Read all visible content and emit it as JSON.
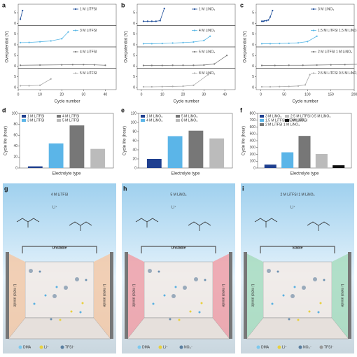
{
  "chart_data": [
    {
      "type": "stacked-line",
      "label": "a",
      "x_label": "Cycle number",
      "y_label": "Overpotential (V)",
      "xlim": [
        0,
        45
      ],
      "xticks": [
        0,
        10,
        20,
        30,
        40
      ],
      "panels": [
        {
          "name": "1 M LiTFSI",
          "color": "#1f4e9a",
          "ylim": [
            -1,
            9
          ],
          "yticks": [
            0,
            5
          ],
          "x": [
            1,
            2
          ],
          "values": [
            2,
            6
          ]
        },
        {
          "name": "3 M LiTFSI",
          "color": "#5bb8e6",
          "ylim": [
            -1,
            9
          ],
          "yticks": [
            0,
            5
          ],
          "x": [
            1,
            5,
            10,
            15,
            20,
            23
          ],
          "values": [
            1,
            1.1,
            1.4,
            1.8,
            2.8,
            6
          ]
        },
        {
          "name": "4 M LiTFSI",
          "color": "#777777",
          "ylim": [
            -1,
            9
          ],
          "yticks": [
            0,
            5
          ],
          "x": [
            1,
            10,
            20,
            25,
            30,
            35,
            40
          ],
          "values": [
            0.4,
            0.5,
            0.6,
            0.7,
            0.7,
            0.6,
            0.4
          ]
        },
        {
          "name": "5 M LiTFSI",
          "color": "#aaaaaa",
          "ylim": [
            -1,
            9
          ],
          "yticks": [
            0,
            5
          ],
          "x": [
            1,
            5,
            10,
            15
          ],
          "values": [
            0.8,
            0.8,
            1,
            4
          ]
        }
      ]
    },
    {
      "type": "stacked-line",
      "label": "b",
      "x_label": "Cycle number",
      "y_label": "Overpotential (V)",
      "xlim": [
        -2,
        45
      ],
      "xticks": [
        0,
        10,
        20,
        30,
        40
      ],
      "panels": [
        {
          "name": "1 M LiNO₃",
          "color": "#1f4e9a",
          "ylim": [
            -1,
            9
          ],
          "yticks": [
            0,
            5
          ],
          "x": [
            1,
            3,
            5,
            7,
            9,
            11
          ],
          "values": [
            1,
            1,
            1,
            1,
            1.3,
            7
          ]
        },
        {
          "name": "4 M LiNO₃",
          "color": "#5bb8e6",
          "ylim": [
            -1,
            9
          ],
          "yticks": [
            0,
            5
          ],
          "x": [
            1,
            5,
            10,
            15,
            20,
            25,
            30,
            33
          ],
          "values": [
            0.5,
            0.5,
            0.6,
            0.8,
            1,
            1.3,
            2,
            4
          ]
        },
        {
          "name": "5 M LiNO₃",
          "color": "#777777",
          "ylim": [
            -1,
            9
          ],
          "yticks": [
            0,
            5
          ],
          "x": [
            1,
            5,
            10,
            15,
            20,
            25,
            30,
            35,
            41
          ],
          "values": [
            0.3,
            0.3,
            0.3,
            0.4,
            0.4,
            0.4,
            0.5,
            1,
            5
          ]
        },
        {
          "name": "8 M LiNO₃",
          "color": "#aaaaaa",
          "ylim": [
            -1,
            9
          ],
          "yticks": [
            0,
            5
          ],
          "x": [
            1,
            5,
            10,
            15,
            20,
            25,
            32
          ],
          "values": [
            0.3,
            0.3,
            0.4,
            0.5,
            0.6,
            1,
            6
          ]
        }
      ]
    },
    {
      "type": "stacked-line",
      "label": "c",
      "x_label": "Cycle number",
      "y_label": "Overpotential (V)",
      "xlim": [
        -10,
        200
      ],
      "xticks": [
        0,
        50,
        100,
        150,
        200
      ],
      "panels": [
        {
          "name": "3 M LiNO₃",
          "color": "#1f4e9a",
          "ylim": [
            -1,
            9
          ],
          "yticks": [
            0,
            5
          ],
          "x": [
            2,
            5,
            8,
            12,
            16,
            20,
            25
          ],
          "values": [
            1,
            1,
            1.2,
            1.3,
            1.6,
            3,
            6
          ]
        },
        {
          "name": "1.5 M LiTFSI 1.5 M LiNO₃",
          "color": "#5bb8e6",
          "ylim": [
            -1,
            9
          ],
          "yticks": [
            0,
            5
          ],
          "x": [
            2,
            20,
            40,
            60,
            80,
            100,
            120
          ],
          "values": [
            0.5,
            0.5,
            0.6,
            0.7,
            0.9,
            1.5,
            4
          ]
        },
        {
          "name": "2 M LiTFSI 1 M LiNO₃",
          "color": "#777777",
          "ylim": [
            -1,
            9
          ],
          "yticks": [
            0,
            5
          ],
          "x": [
            2,
            30,
            60,
            90,
            120,
            150,
            180,
            210,
            230
          ],
          "values": [
            0.3,
            0.3,
            0.4,
            0.4,
            0.5,
            0.6,
            0.7,
            0.9,
            1.5
          ]
        },
        {
          "name": "2.5 M LiTFSI 0.5 M LiNO₃",
          "color": "#aaaaaa",
          "ylim": [
            -1,
            9
          ],
          "yticks": [
            0,
            5
          ],
          "x": [
            2,
            20,
            40,
            60,
            80,
            95,
            105
          ],
          "values": [
            0.3,
            0.3,
            0.4,
            0.5,
            0.7,
            1.2,
            6
          ]
        }
      ]
    },
    {
      "type": "bar",
      "label": "d",
      "x_label": "Electrolyte type",
      "y_label": "Cycle life (hour)",
      "ylim": [
        0,
        100
      ],
      "yticks": [
        0,
        20,
        40,
        60,
        80,
        100
      ],
      "categories": [
        "1 M LiTFSI",
        "3 M LiTFSI",
        "4 M LiTFSI",
        "5 M LiTFSI"
      ],
      "colors": [
        "#1f3f8f",
        "#5bb5e8",
        "#777777",
        "#bbbbbb"
      ],
      "values": [
        3,
        45,
        78,
        35
      ]
    },
    {
      "type": "bar",
      "label": "e",
      "x_label": "Electrolyte type",
      "y_label": "Cycle life (hour)",
      "ylim": [
        0,
        120
      ],
      "yticks": [
        0,
        20,
        40,
        60,
        80,
        100,
        120
      ],
      "categories": [
        "1 M LiNO₃",
        "4 M LiNO₃",
        "5 M LiNO₃",
        "8 M LiNO₃"
      ],
      "colors": [
        "#1f3f8f",
        "#5bb5e8",
        "#777777",
        "#bbbbbb"
      ],
      "values": [
        20,
        70,
        82,
        65
      ]
    },
    {
      "type": "bar",
      "label": "f",
      "x_label": "Electrolyte type",
      "y_label": "Cycle life (hour)",
      "ylim": [
        0,
        800
      ],
      "yticks": [
        0,
        100,
        200,
        300,
        400,
        500,
        600,
        700,
        800
      ],
      "categories": [
        "3 M LiNO₃",
        "1.5 M LiTFSI 1.5 M LiNO₃",
        "2 M LiTFSI 1 M LiNO₃",
        "2.5 M LiTFSI 0.5 M LiNO₃",
        "3 M LiTFSI"
      ],
      "colors": [
        "#1f3f8f",
        "#5bb5e8",
        "#777777",
        "#bbbbbb",
        "#111111"
      ],
      "values": [
        50,
        230,
        470,
        205,
        40
      ]
    }
  ],
  "diagrams": [
    {
      "label": "g",
      "title": "4 M LiTFSI",
      "ion": "Li⁺",
      "status": "Unstable",
      "status_color": "#f0a050",
      "wall_color": "#f3c9a8",
      "left_label": "Li metal anode",
      "right_label": "Li metal anode",
      "legend": [
        "DMA",
        "Li⁺",
        "TFSI⁻"
      ]
    },
    {
      "label": "h",
      "title": "5 M LiNO₃",
      "ion": "Li⁺",
      "status": "Unstable",
      "status_color": "#e03040",
      "wall_color": "#f0a0a8",
      "left_label": "Li metal anode",
      "right_label": "Li metal anode",
      "legend": [
        "DMA",
        "Li⁺",
        "NO₃⁻"
      ]
    },
    {
      "label": "i",
      "title": "2 M LiTFSI 1 M LiNO₃",
      "ion": "Li⁺",
      "status": "Stable",
      "status_color": "#3cb878",
      "wall_color": "#a8dcc0",
      "left_label": "Li metal anode",
      "right_label": "Li metal anode",
      "legend": [
        "DMA",
        "Li⁺",
        "NO₃⁻",
        "TFSI⁻"
      ]
    }
  ]
}
